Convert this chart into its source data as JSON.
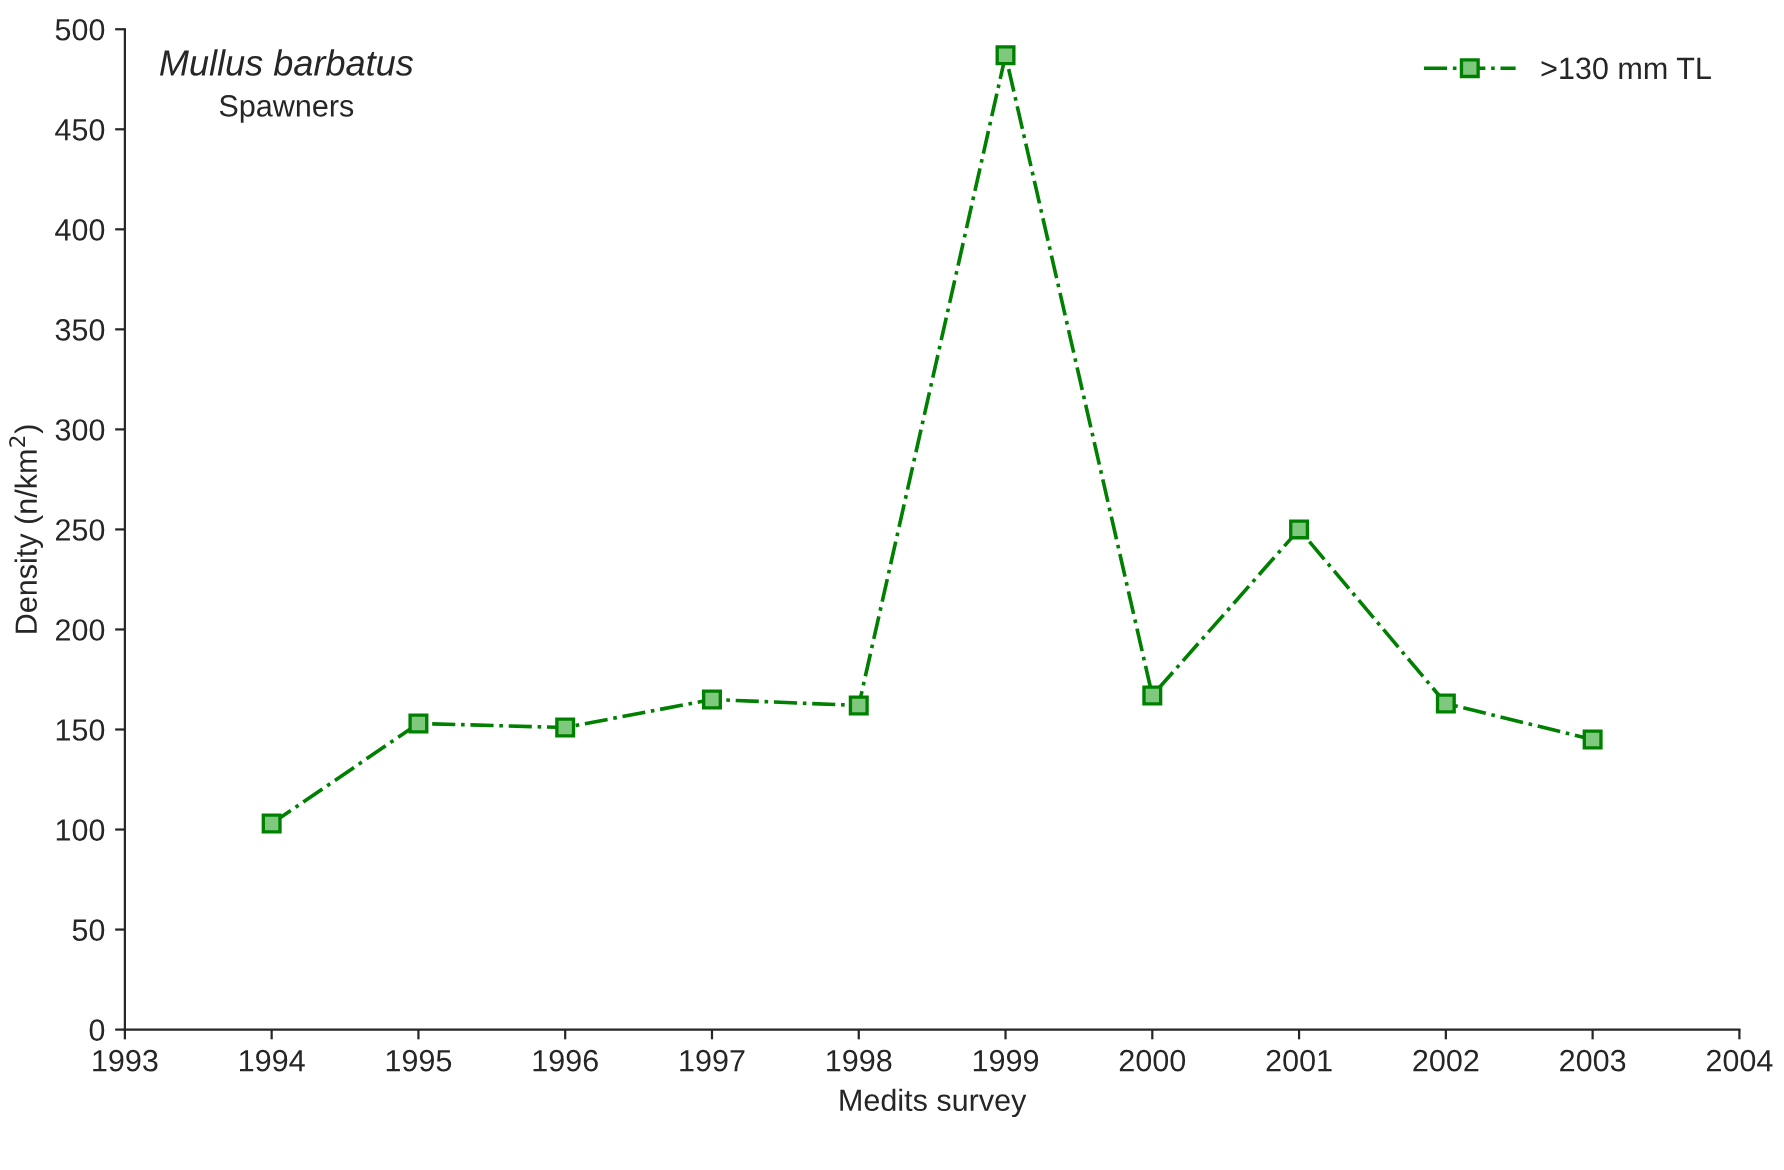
{
  "chart_data": {
    "type": "line",
    "title": "Mullus barbatus",
    "subtitle": "Spawners",
    "xlabel": "Medits survey",
    "ylabel": "Density (n/km$^{2}$)",
    "x": [
      1994,
      1995,
      1996,
      1997,
      1998,
      1999,
      2000,
      2001,
      2002,
      2003
    ],
    "series": [
      {
        "name": ">130 mm TL",
        "color": "#008000",
        "values": [
          103,
          153,
          151,
          165,
          162,
          487,
          167,
          250,
          163,
          145
        ]
      }
    ],
    "xlim": [
      1993,
      2004
    ],
    "xticks": [
      1993,
      1994,
      1995,
      1996,
      1997,
      1998,
      1999,
      2000,
      2001,
      2002,
      2003,
      2004
    ],
    "ylim": [
      0,
      500
    ],
    "yticks": [
      0,
      50,
      100,
      150,
      200,
      250,
      300,
      350,
      400,
      450,
      500
    ],
    "grid": false,
    "legend": "top right",
    "marker": "square",
    "line_style": "dashed"
  }
}
